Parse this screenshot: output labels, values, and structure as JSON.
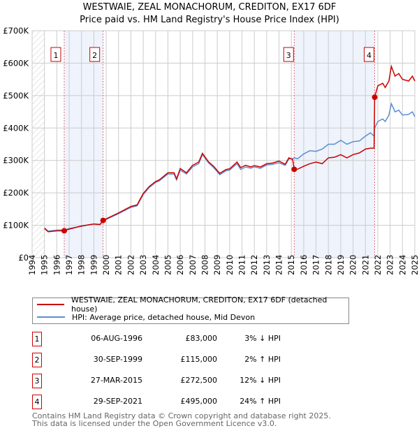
{
  "chart_data": {
    "type": "line",
    "title": "WESTWAIE, ZEAL MONACHORUM, CREDITON, EX17 6DF",
    "subtitle": "Price paid vs. HM Land Registry's House Price Index (HPI)",
    "xlim": [
      1994,
      2025
    ],
    "ylim": [
      0,
      700000
    ],
    "grid": true,
    "x_ticks": [
      "1994",
      "1995",
      "1996",
      "1997",
      "1998",
      "1999",
      "2000",
      "2001",
      "2002",
      "2003",
      "2004",
      "2005",
      "2006",
      "2007",
      "2008",
      "2009",
      "2010",
      "2011",
      "2012",
      "2013",
      "2014",
      "2015",
      "2016",
      "2017",
      "2018",
      "2019",
      "2020",
      "2021",
      "2022",
      "2023",
      "2024",
      "2025"
    ],
    "y_ticks": [
      {
        "v": 0,
        "label": "£0"
      },
      {
        "v": 100000,
        "label": "£100K"
      },
      {
        "v": 200000,
        "label": "£200K"
      },
      {
        "v": 300000,
        "label": "£300K"
      },
      {
        "v": 400000,
        "label": "£400K"
      },
      {
        "v": 500000,
        "label": "£500K"
      },
      {
        "v": 600000,
        "label": "£600K"
      },
      {
        "v": 700000,
        "label": "£700K"
      }
    ],
    "shaded_ranges": [
      [
        1996.6,
        1999.75
      ],
      [
        2015.23,
        2021.75
      ]
    ],
    "series": [
      {
        "name": "WESTWAIE, ZEAL MONACHORUM, CREDITON, EX17 6DF (detached house)",
        "color": "#cc0000",
        "x": [
          1995,
          1995.3,
          1996,
          1996.6,
          1997,
          1998,
          1999,
          1999.5,
          1999.75,
          2000,
          2001,
          2002,
          2002.5,
          2003,
          2003.5,
          2004,
          2004.3,
          2005,
          2005.5,
          2005.7,
          2006,
          2006.5,
          2007,
          2007.5,
          2007.8,
          2008.3,
          2008.7,
          2009.2,
          2009.7,
          2010,
          2010.6,
          2010.9,
          2011.3,
          2011.7,
          2012,
          2012.5,
          2013,
          2013.5,
          2014,
          2014.5,
          2014.8,
          2015.1,
          2015.23,
          2015.5,
          2016,
          2016.5,
          2017,
          2017.5,
          2018,
          2018.5,
          2019,
          2019.5,
          2020,
          2020.5,
          2021,
          2021.4,
          2021.7,
          2021.75,
          2022,
          2022.4,
          2022.6,
          2022.9,
          2023.1,
          2023.4,
          2023.7,
          2024,
          2024.5,
          2024.8,
          2025
        ],
        "y": [
          90000,
          80000,
          83000,
          83000,
          88000,
          98000,
          104000,
          102000,
          115000,
          120000,
          138000,
          158000,
          163000,
          198000,
          220000,
          235000,
          240000,
          262000,
          262000,
          243000,
          275000,
          262000,
          285000,
          295000,
          322000,
          295000,
          282000,
          260000,
          272000,
          274000,
          295000,
          278000,
          285000,
          280000,
          284000,
          280000,
          290000,
          292000,
          298000,
          288000,
          308000,
          303000,
          272500,
          273000,
          282000,
          290000,
          295000,
          290000,
          308000,
          310000,
          318000,
          308000,
          318000,
          323000,
          335000,
          338000,
          338000,
          495000,
          530000,
          538000,
          525000,
          545000,
          590000,
          560000,
          568000,
          550000,
          545000,
          560000,
          545000
        ]
      },
      {
        "name": "HPI: Average price, detached house, Mid Devon",
        "color": "#5b8fd0",
        "x": [
          1995,
          1995.3,
          1996,
          1996.6,
          1997,
          1998,
          1999,
          1999.5,
          1999.75,
          2000,
          2001,
          2002,
          2002.5,
          2003,
          2003.5,
          2004,
          2004.3,
          2005,
          2005.5,
          2005.7,
          2006,
          2006.5,
          2007,
          2007.5,
          2007.8,
          2008.3,
          2008.7,
          2009.2,
          2009.7,
          2010,
          2010.6,
          2010.9,
          2011.3,
          2011.7,
          2012,
          2012.5,
          2013,
          2013.5,
          2014,
          2014.5,
          2014.8,
          2015.1,
          2015.23,
          2015.5,
          2016,
          2016.5,
          2017,
          2017.5,
          2018,
          2018.5,
          2019,
          2019.5,
          2020,
          2020.5,
          2021,
          2021.4,
          2021.7,
          2021.75,
          2022,
          2022.4,
          2022.6,
          2022.9,
          2023.1,
          2023.4,
          2023.7,
          2024,
          2024.5,
          2024.8,
          2025
        ],
        "y": [
          92000,
          82000,
          85000,
          85500,
          90000,
          97000,
          104000,
          103000,
          113000,
          118000,
          136000,
          155000,
          160000,
          195000,
          217000,
          232000,
          237000,
          258000,
          258000,
          240000,
          270000,
          258000,
          280000,
          290000,
          318000,
          292000,
          278000,
          256000,
          268000,
          270000,
          290000,
          272000,
          280000,
          276000,
          280000,
          276000,
          286000,
          288000,
          293000,
          285000,
          305000,
          305000,
          308000,
          305000,
          320000,
          330000,
          328000,
          335000,
          350000,
          350000,
          362000,
          350000,
          358000,
          360000,
          375000,
          385000,
          375000,
          400000,
          420000,
          428000,
          420000,
          440000,
          475000,
          450000,
          455000,
          440000,
          442000,
          450000,
          435000
        ]
      }
    ],
    "sales": [
      {
        "n": "1",
        "x": 1996.6,
        "y": 83000,
        "date": "06-AUG-1996",
        "price": "£83,000",
        "hpi": "3% ↓ HPI"
      },
      {
        "n": "2",
        "x": 1999.75,
        "y": 115000,
        "date": "30-SEP-1999",
        "price": "£115,000",
        "hpi": "2% ↑ HPI"
      },
      {
        "n": "3",
        "x": 2015.23,
        "y": 272500,
        "date": "27-MAR-2015",
        "price": "£272,500",
        "hpi": "12% ↓ HPI"
      },
      {
        "n": "4",
        "x": 2021.75,
        "y": 495000,
        "date": "29-SEP-2021",
        "price": "£495,000",
        "hpi": "24% ↑ HPI"
      }
    ]
  },
  "footer": {
    "line1": "Contains HM Land Registry data © Crown copyright and database right 2025.",
    "line2": "This data is licensed under the Open Government Licence v3.0."
  }
}
